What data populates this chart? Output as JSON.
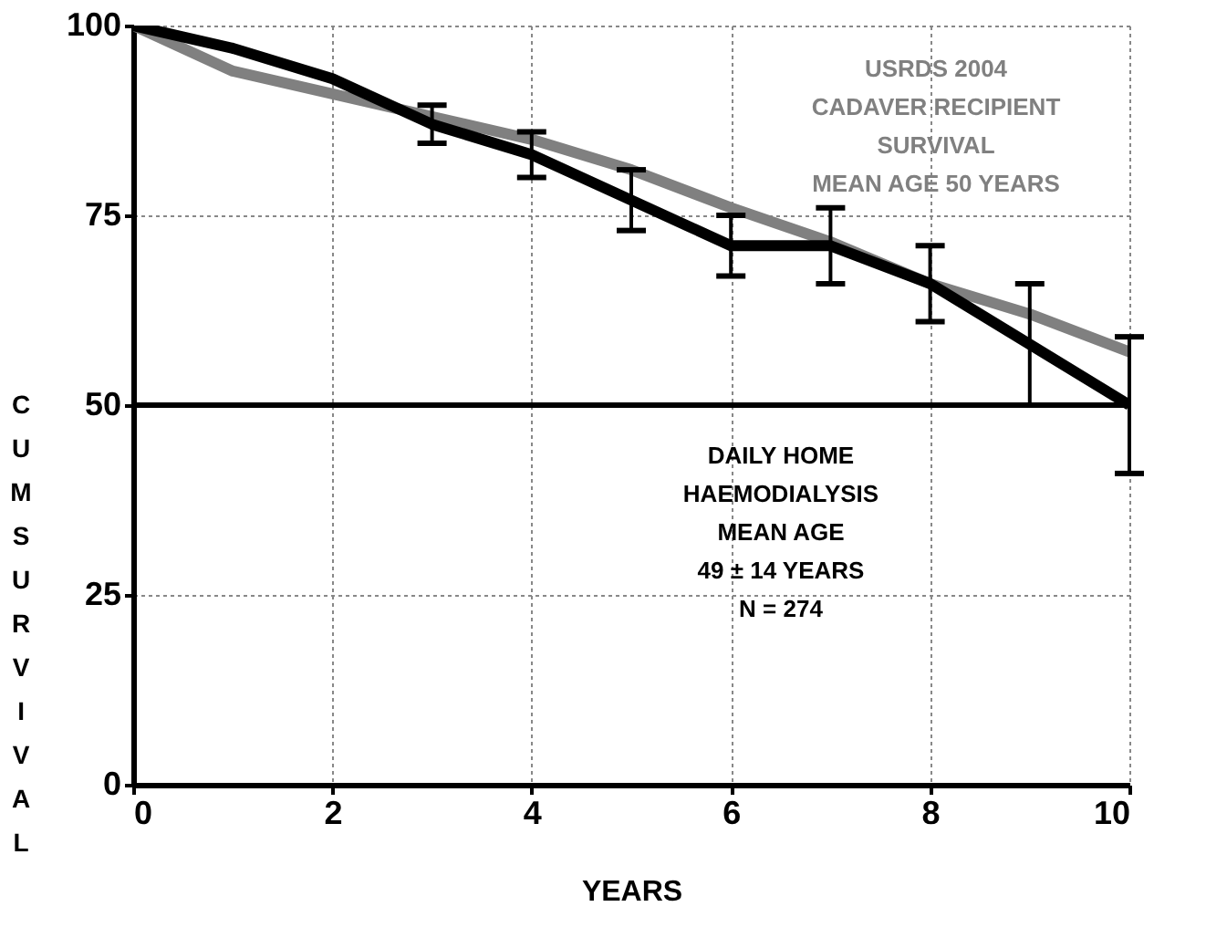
{
  "chart_data": {
    "type": "line",
    "xlabel": "YEARS",
    "ylabel": "CUM SURVIVAL",
    "x": [
      0,
      1,
      2,
      3,
      4,
      5,
      6,
      7,
      8,
      9,
      10
    ],
    "series": [
      {
        "color": "#808080",
        "values": [
          100,
          94,
          91,
          88,
          85,
          81,
          76,
          71.5,
          66,
          62,
          57
        ]
      },
      {
        "color": "#000000",
        "values": [
          100,
          97,
          93,
          87,
          83,
          77,
          71,
          71,
          66,
          58,
          50
        ],
        "errors": [
          null,
          null,
          null,
          2.5,
          3,
          4,
          4,
          5,
          5,
          8,
          9
        ]
      }
    ],
    "xlim": [
      0,
      10
    ],
    "xticks": [
      0,
      2,
      4,
      6,
      8,
      10
    ],
    "ylim": [
      0,
      100
    ],
    "yticks": [
      0,
      25,
      50,
      75,
      100
    ],
    "grid": true,
    "marker": "none",
    "line_style": "solid",
    "ref_lines": [
      {
        "axis": "y",
        "value": 50,
        "color": "#000000"
      }
    ],
    "annotations": [
      "USRDS 2004\nCADAVER RECIPIENT\nSURVIVAL\nMEAN AGE 50 YEARS",
      "DAILY HOME\nHAEMODIALYSIS\nMEAN AGE\n49 ± 14 YEARS\nN = 274"
    ]
  }
}
